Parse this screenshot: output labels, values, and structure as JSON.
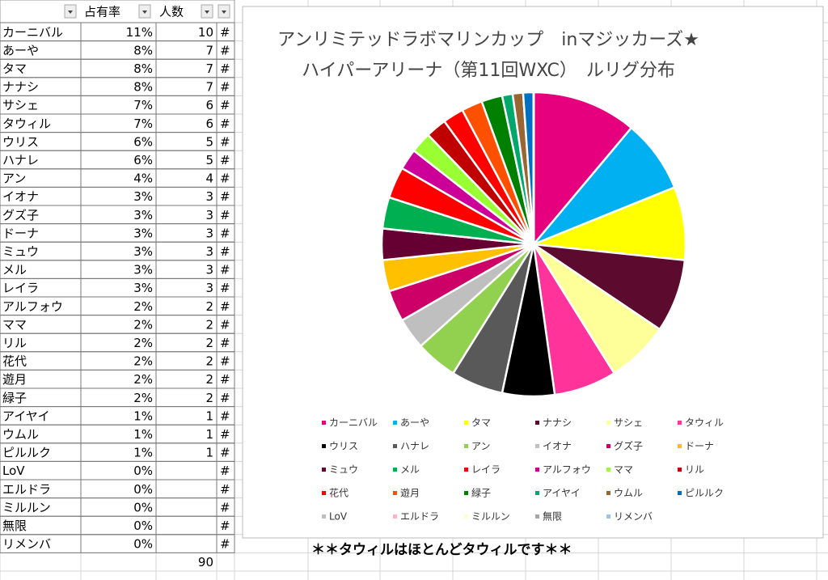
{
  "table": {
    "headers": [
      "占有率",
      "人数"
    ],
    "rows": [
      [
        "カーニバル",
        "11%",
        10,
        "#"
      ],
      [
        "あーや",
        "8%",
        7,
        "#"
      ],
      [
        "タマ",
        "8%",
        7,
        "#"
      ],
      [
        "ナナシ",
        "8%",
        7,
        "#"
      ],
      [
        "サシェ",
        "7%",
        6,
        "#"
      ],
      [
        "タウィル",
        "7%",
        6,
        "#"
      ],
      [
        "ウリス",
        "6%",
        5,
        "#"
      ],
      [
        "ハナレ",
        "6%",
        5,
        "#"
      ],
      [
        "アン",
        "4%",
        4,
        "#"
      ],
      [
        "イオナ",
        "3%",
        3,
        "#"
      ],
      [
        "グズ子",
        "3%",
        3,
        "#"
      ],
      [
        "ドーナ",
        "3%",
        3,
        "#"
      ],
      [
        "ミュウ",
        "3%",
        3,
        "#"
      ],
      [
        "メル",
        "3%",
        3,
        "#"
      ],
      [
        "レイラ",
        "3%",
        3,
        "#"
      ],
      [
        "アルフォウ",
        "2%",
        2,
        "#"
      ],
      [
        "ママ",
        "2%",
        2,
        "#"
      ],
      [
        "リル",
        "2%",
        2,
        "#"
      ],
      [
        "花代",
        "2%",
        2,
        "#"
      ],
      [
        "遊月",
        "2%",
        2,
        "#"
      ],
      [
        "緑子",
        "2%",
        2,
        "#"
      ],
      [
        "アイヤイ",
        "1%",
        1,
        "#"
      ],
      [
        "ウムル",
        "1%",
        1,
        "#"
      ],
      [
        "ピルルク",
        "1%",
        1,
        "#"
      ],
      [
        "LoV",
        "0%",
        null,
        "#"
      ],
      [
        "エルドラ",
        "0%",
        null,
        "#"
      ],
      [
        "ミルルン",
        "0%",
        null,
        "#"
      ],
      [
        "無限",
        "0%",
        null,
        "#"
      ],
      [
        "リメンバ",
        "0%",
        null,
        "#"
      ]
    ],
    "total": 90
  },
  "chart_data": {
    "type": "pie",
    "title": "アンリミテッドラボマリンカップ　inマジッカーズ★",
    "subtitle": "ハイパーアリーナ（第11回WXC）　ルリグ分布",
    "categories": [
      "カーニバル",
      "あーや",
      "タマ",
      "ナナシ",
      "サシェ",
      "タウィル",
      "ウリス",
      "ハナレ",
      "アン",
      "イオナ",
      "グズ子",
      "ドーナ",
      "ミュウ",
      "メル",
      "レイラ",
      "アルフォウ",
      "ママ",
      "リル",
      "花代",
      "遊月",
      "緑子",
      "アイヤイ",
      "ウムル",
      "ピルルク",
      "LoV",
      "エルドラ",
      "ミルルン",
      "無限",
      "リメンバ"
    ],
    "values": [
      10,
      7,
      7,
      7,
      6,
      6,
      5,
      5,
      4,
      3,
      3,
      3,
      3,
      3,
      3,
      2,
      2,
      2,
      2,
      2,
      2,
      1,
      1,
      1,
      0,
      0,
      0,
      0,
      0
    ],
    "colors": [
      "#e6007e",
      "#00b0f0",
      "#ffff00",
      "#5c0a2e",
      "#ffff99",
      "#ff3399",
      "#000000",
      "#595959",
      "#92d050",
      "#bfbfbf",
      "#cc0066",
      "#ffc000",
      "#660033",
      "#00b050",
      "#ff0000",
      "#cc0099",
      "#99ff33",
      "#c00000",
      "#ff0000",
      "#ff5000",
      "#008000",
      "#00a86b",
      "#996633",
      "#0070c0",
      "#bfbfbf",
      "#ffb3c6",
      "#ffffcc",
      "#a6a6a6",
      "#9dc3e6"
    ],
    "legend": "bottom"
  },
  "note": "＊＊タウィルはほとんどタウィルです＊＊"
}
